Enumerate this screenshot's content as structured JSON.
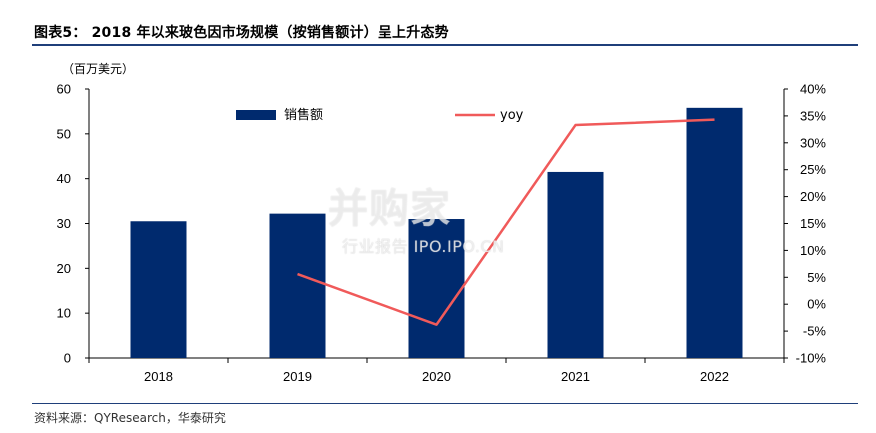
{
  "figure": {
    "title": "图表5：  2018 年以来玻色因市场规模（按销售额计）呈上升态势",
    "source": "资料来源：QYResearch，华泰研究",
    "watermark_main": "并购家",
    "watermark_sub": "行业报告 IPO.IPO.CN"
  },
  "chart_data": {
    "type": "bar",
    "categories": [
      "2018",
      "2019",
      "2020",
      "2021",
      "2022"
    ],
    "ylabel": "（百万美元）",
    "ylim": [
      0,
      60
    ],
    "y2lim": [
      -10,
      40
    ],
    "left_ticks": [
      "0",
      "10",
      "20",
      "30",
      "40",
      "50",
      "60"
    ],
    "right_ticks": [
      "-10%",
      "-5%",
      "0%",
      "5%",
      "10%",
      "15%",
      "20%",
      "25%",
      "30%",
      "35%",
      "40%"
    ],
    "series": [
      {
        "name": "销售额",
        "type": "bar",
        "axis": "left",
        "color": "#002a6e",
        "values": [
          30.5,
          32.2,
          31.0,
          41.5,
          55.8
        ]
      },
      {
        "name": "yoy",
        "type": "line",
        "axis": "right",
        "color": "#f05a5a",
        "values": [
          null,
          5.6,
          -3.8,
          33.3,
          34.3
        ]
      }
    ],
    "legend": "top-center",
    "grid": false
  }
}
